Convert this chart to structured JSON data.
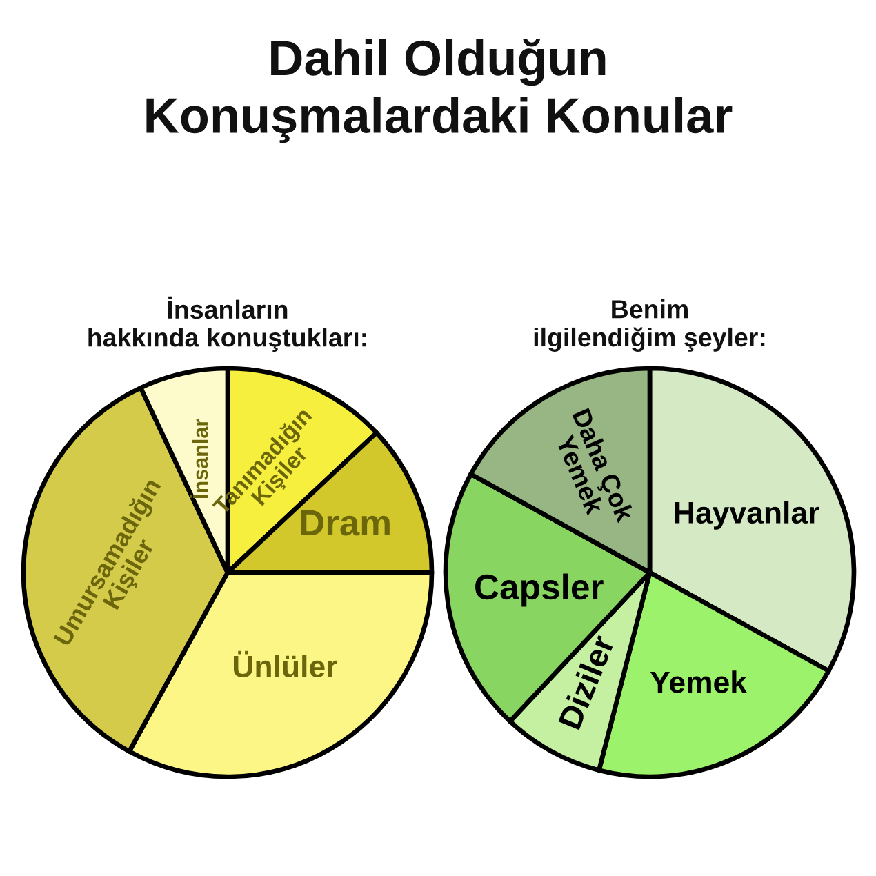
{
  "chart_data": [
    {
      "type": "pie",
      "title": "Dahil Olduğun Konuşmalardaki Konular",
      "subtitle": "İnsanların hakkında konuştukları:",
      "categories": [
        "Tanımadığın Kişiler",
        "Dram",
        "Ünlüler",
        "Umursamadığın Kişiler",
        "İnsanlar"
      ],
      "values": [
        13,
        12,
        33,
        35,
        7
      ],
      "colors": [
        "#f6ef3e",
        "#d3c82b",
        "#fbf685",
        "#d5cb4a",
        "#fdfacc"
      ]
    },
    {
      "type": "pie",
      "subtitle": "Benim ilgilendiğim şeyler:",
      "categories": [
        "Hayvanlar",
        "Yemek",
        "Diziler",
        "Capsler",
        "Daha Çok Yemek"
      ],
      "values": [
        33,
        21,
        8,
        21,
        17
      ],
      "colors": [
        "#d4e9c4",
        "#9cf26b",
        "#c5f0a2",
        "#89d562",
        "#98b684"
      ]
    }
  ]
}
